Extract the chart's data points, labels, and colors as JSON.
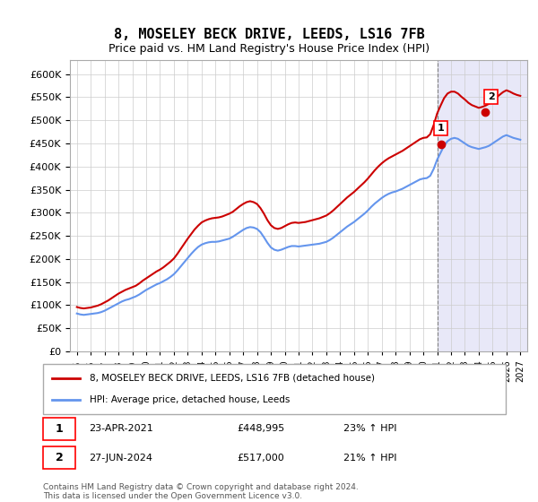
{
  "title": "8, MOSELEY BECK DRIVE, LEEDS, LS16 7FB",
  "subtitle": "Price paid vs. HM Land Registry's House Price Index (HPI)",
  "ylabel_ticks": [
    0,
    50000,
    100000,
    150000,
    200000,
    250000,
    300000,
    350000,
    400000,
    450000,
    500000,
    550000,
    600000
  ],
  "ylim": [
    0,
    630000
  ],
  "xlim_min": 1994.5,
  "xlim_max": 2027.5,
  "xticks": [
    1995,
    1996,
    1997,
    1998,
    1999,
    2000,
    2001,
    2002,
    2003,
    2004,
    2005,
    2006,
    2007,
    2008,
    2009,
    2010,
    2011,
    2012,
    2013,
    2014,
    2015,
    2016,
    2017,
    2018,
    2019,
    2020,
    2021,
    2022,
    2023,
    2024,
    2025,
    2026,
    2027
  ],
  "hpi_color": "#6495ED",
  "property_color": "#CC0000",
  "sale1_date": "23-APR-2021",
  "sale1_price": 448995,
  "sale1_x": 2021.31,
  "sale1_label": "1",
  "sale2_date": "27-JUN-2024",
  "sale2_price": 517000,
  "sale2_x": 2024.49,
  "sale2_label": "2",
  "legend_property": "8, MOSELEY BECK DRIVE, LEEDS, LS16 7FB (detached house)",
  "legend_hpi": "HPI: Average price, detached house, Leeds",
  "annotation1": "1     23-APR-2021          £448,995          23% ↑ HPI",
  "annotation2": "2     27-JUN-2024            £517,000          21% ↑ HPI",
  "footer": "Contains HM Land Registry data © Crown copyright and database right 2024.\nThis data is licensed under the Open Government Licence v3.0.",
  "background_color": "#ffffff",
  "grid_color": "#cccccc",
  "hpi_data_x": [
    1995.0,
    1995.25,
    1995.5,
    1995.75,
    1996.0,
    1996.25,
    1996.5,
    1996.75,
    1997.0,
    1997.25,
    1997.5,
    1997.75,
    1998.0,
    1998.25,
    1998.5,
    1998.75,
    1999.0,
    1999.25,
    1999.5,
    1999.75,
    2000.0,
    2000.25,
    2000.5,
    2000.75,
    2001.0,
    2001.25,
    2001.5,
    2001.75,
    2002.0,
    2002.25,
    2002.5,
    2002.75,
    2003.0,
    2003.25,
    2003.5,
    2003.75,
    2004.0,
    2004.25,
    2004.5,
    2004.75,
    2005.0,
    2005.25,
    2005.5,
    2005.75,
    2006.0,
    2006.25,
    2006.5,
    2006.75,
    2007.0,
    2007.25,
    2007.5,
    2007.75,
    2008.0,
    2008.25,
    2008.5,
    2008.75,
    2009.0,
    2009.25,
    2009.5,
    2009.75,
    2010.0,
    2010.25,
    2010.5,
    2010.75,
    2011.0,
    2011.25,
    2011.5,
    2011.75,
    2012.0,
    2012.25,
    2012.5,
    2012.75,
    2013.0,
    2013.25,
    2013.5,
    2013.75,
    2014.0,
    2014.25,
    2014.5,
    2014.75,
    2015.0,
    2015.25,
    2015.5,
    2015.75,
    2016.0,
    2016.25,
    2016.5,
    2016.75,
    2017.0,
    2017.25,
    2017.5,
    2017.75,
    2018.0,
    2018.25,
    2018.5,
    2018.75,
    2019.0,
    2019.25,
    2019.5,
    2019.75,
    2020.0,
    2020.25,
    2020.5,
    2020.75,
    2021.0,
    2021.25,
    2021.5,
    2021.75,
    2022.0,
    2022.25,
    2022.5,
    2022.75,
    2023.0,
    2023.25,
    2023.5,
    2023.75,
    2024.0,
    2024.25,
    2024.5,
    2024.75,
    2025.0,
    2025.25,
    2025.5,
    2025.75,
    2026.0,
    2026.25,
    2026.5,
    2026.75,
    2027.0
  ],
  "hpi_data_y": [
    82000,
    80000,
    79000,
    80000,
    81000,
    82000,
    83000,
    85000,
    88000,
    92000,
    96000,
    100000,
    104000,
    108000,
    111000,
    113000,
    116000,
    119000,
    123000,
    128000,
    133000,
    137000,
    141000,
    145000,
    148000,
    152000,
    156000,
    161000,
    167000,
    175000,
    184000,
    193000,
    202000,
    211000,
    219000,
    226000,
    231000,
    234000,
    236000,
    237000,
    237000,
    238000,
    240000,
    242000,
    244000,
    248000,
    253000,
    258000,
    263000,
    267000,
    269000,
    268000,
    265000,
    258000,
    247000,
    235000,
    225000,
    220000,
    218000,
    220000,
    223000,
    226000,
    228000,
    228000,
    227000,
    228000,
    229000,
    230000,
    231000,
    232000,
    233000,
    235000,
    237000,
    241000,
    246000,
    252000,
    258000,
    264000,
    270000,
    275000,
    280000,
    286000,
    292000,
    298000,
    305000,
    313000,
    320000,
    326000,
    332000,
    337000,
    341000,
    344000,
    346000,
    349000,
    352000,
    356000,
    360000,
    364000,
    368000,
    372000,
    374000,
    375000,
    380000,
    395000,
    415000,
    430000,
    445000,
    455000,
    460000,
    462000,
    460000,
    455000,
    450000,
    445000,
    442000,
    440000,
    438000,
    440000,
    442000,
    445000,
    450000,
    455000,
    460000,
    465000,
    468000,
    465000,
    462000,
    460000,
    458000
  ],
  "prop_data_x": [
    1995.0,
    1995.25,
    1995.5,
    1995.75,
    1996.0,
    1996.25,
    1996.5,
    1996.75,
    1997.0,
    1997.25,
    1997.5,
    1997.75,
    1998.0,
    1998.25,
    1998.5,
    1998.75,
    1999.0,
    1999.25,
    1999.5,
    1999.75,
    2000.0,
    2000.25,
    2000.5,
    2000.75,
    2001.0,
    2001.25,
    2001.5,
    2001.75,
    2002.0,
    2002.25,
    2002.5,
    2002.75,
    2003.0,
    2003.25,
    2003.5,
    2003.75,
    2004.0,
    2004.25,
    2004.5,
    2004.75,
    2005.0,
    2005.25,
    2005.5,
    2005.75,
    2006.0,
    2006.25,
    2006.5,
    2006.75,
    2007.0,
    2007.25,
    2007.5,
    2007.75,
    2008.0,
    2008.25,
    2008.5,
    2008.75,
    2009.0,
    2009.25,
    2009.5,
    2009.75,
    2010.0,
    2010.25,
    2010.5,
    2010.75,
    2011.0,
    2011.25,
    2011.5,
    2011.75,
    2012.0,
    2012.25,
    2012.5,
    2012.75,
    2013.0,
    2013.25,
    2013.5,
    2013.75,
    2014.0,
    2014.25,
    2014.5,
    2014.75,
    2015.0,
    2015.25,
    2015.5,
    2015.75,
    2016.0,
    2016.25,
    2016.5,
    2016.75,
    2017.0,
    2017.25,
    2017.5,
    2017.75,
    2018.0,
    2018.25,
    2018.5,
    2018.75,
    2019.0,
    2019.25,
    2019.5,
    2019.75,
    2020.0,
    2020.25,
    2020.5,
    2020.75,
    2021.0,
    2021.25,
    2021.5,
    2021.75,
    2022.0,
    2022.25,
    2022.5,
    2022.75,
    2023.0,
    2023.25,
    2023.5,
    2023.75,
    2024.0,
    2024.25,
    2024.5,
    2024.75,
    2025.0,
    2025.25,
    2025.5,
    2025.75,
    2026.0,
    2026.25,
    2026.5,
    2026.75,
    2027.0
  ],
  "prop_data_y": [
    96000,
    94000,
    93000,
    94000,
    95000,
    97000,
    99000,
    102000,
    106000,
    110000,
    115000,
    120000,
    125000,
    129000,
    133000,
    136000,
    139000,
    142000,
    147000,
    153000,
    158000,
    163000,
    168000,
    173000,
    177000,
    182000,
    188000,
    194000,
    201000,
    211000,
    222000,
    233000,
    244000,
    254000,
    264000,
    272000,
    279000,
    283000,
    286000,
    288000,
    289000,
    290000,
    292000,
    295000,
    298000,
    302000,
    308000,
    314000,
    319000,
    323000,
    325000,
    323000,
    319000,
    310000,
    298000,
    284000,
    273000,
    267000,
    265000,
    267000,
    271000,
    275000,
    278000,
    279000,
    278000,
    279000,
    280000,
    282000,
    284000,
    286000,
    288000,
    291000,
    294000,
    299000,
    305000,
    312000,
    319000,
    326000,
    333000,
    339000,
    345000,
    352000,
    359000,
    366000,
    374000,
    383000,
    392000,
    400000,
    407000,
    413000,
    418000,
    422000,
    426000,
    430000,
    434000,
    439000,
    444000,
    449000,
    454000,
    459000,
    462000,
    463000,
    470000,
    490000,
    515000,
    532000,
    548000,
    558000,
    562000,
    562000,
    558000,
    551000,
    545000,
    538000,
    533000,
    530000,
    527000,
    529000,
    532000,
    536000,
    542000,
    549000,
    555000,
    561000,
    565000,
    562000,
    558000,
    555000,
    553000
  ],
  "shade_x_start": 2021.0,
  "shade_x_end": 2027.5,
  "shade_color": "#e8e8f8"
}
